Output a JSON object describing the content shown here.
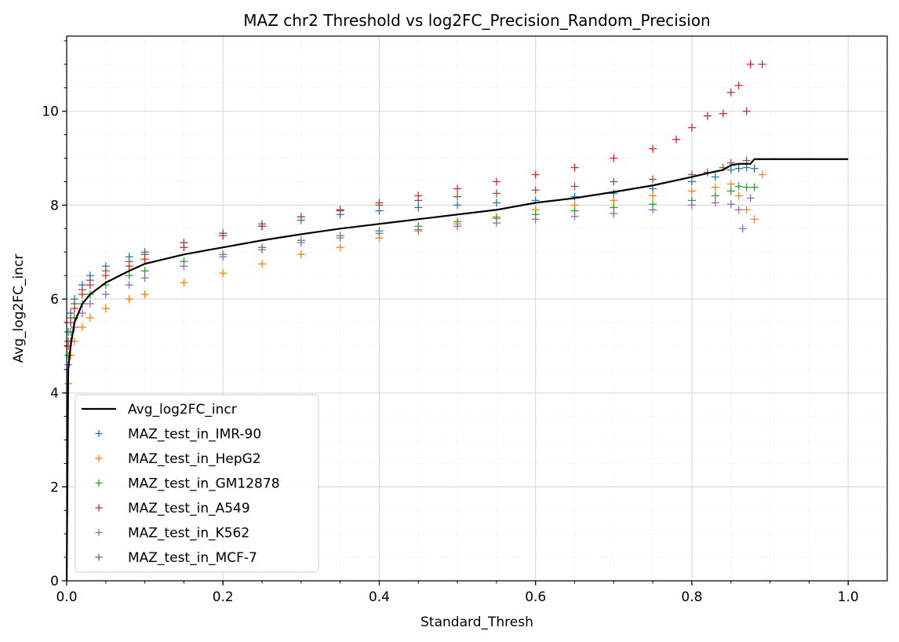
{
  "chart_data": {
    "type": "scatter",
    "title": "MAZ chr2 Threshold vs log2FC_Precision_Random_Precision",
    "xlabel": "Standard_Thresh",
    "ylabel": "Avg_log2FC_incr",
    "xlim": [
      0.0,
      1.05
    ],
    "ylim": [
      0,
      11.6
    ],
    "xticks": [
      "0.0",
      "0.2",
      "0.4",
      "0.6",
      "0.8",
      "1.0"
    ],
    "yticks": [
      "0",
      "2",
      "4",
      "6",
      "8",
      "10"
    ],
    "grid": true,
    "minor_grid": true,
    "legend_position": "lower-left",
    "line_series": {
      "name": "Avg_log2FC_incr",
      "color": "#000000",
      "x": [
        0.0,
        0.002,
        0.005,
        0.01,
        0.02,
        0.03,
        0.05,
        0.08,
        0.1,
        0.15,
        0.2,
        0.25,
        0.3,
        0.35,
        0.4,
        0.45,
        0.5,
        0.55,
        0.6,
        0.65,
        0.7,
        0.75,
        0.8,
        0.82,
        0.84,
        0.85,
        0.86,
        0.87,
        0.875,
        0.88,
        0.9,
        0.95,
        1.0
      ],
      "y": [
        0.0,
        4.5,
        5.0,
        5.5,
        5.9,
        6.1,
        6.35,
        6.6,
        6.75,
        6.95,
        7.1,
        7.25,
        7.38,
        7.5,
        7.6,
        7.7,
        7.8,
        7.9,
        8.05,
        8.15,
        8.28,
        8.42,
        8.6,
        8.68,
        8.75,
        8.85,
        8.88,
        8.88,
        8.88,
        8.98,
        8.98,
        8.98,
        8.98
      ]
    },
    "series": [
      {
        "name": "MAZ_test_in_IMR-90",
        "color": "#1f77b4",
        "x": [
          0.002,
          0.005,
          0.01,
          0.02,
          0.03,
          0.05,
          0.08,
          0.1,
          0.15,
          0.2,
          0.25,
          0.3,
          0.35,
          0.4,
          0.45,
          0.5,
          0.55,
          0.6,
          0.65,
          0.7,
          0.75,
          0.8,
          0.83,
          0.85,
          0.86,
          0.87,
          0.88
        ],
        "y": [
          5.3,
          5.7,
          6.0,
          6.3,
          6.5,
          6.7,
          6.9,
          7.0,
          7.2,
          7.4,
          7.55,
          7.68,
          7.8,
          7.88,
          7.95,
          8.0,
          8.05,
          8.1,
          8.18,
          8.25,
          8.35,
          8.5,
          8.6,
          8.75,
          8.78,
          8.8,
          8.78
        ]
      },
      {
        "name": "MAZ_test_in_HepG2",
        "color": "#ff7f0e",
        "x": [
          0.002,
          0.005,
          0.01,
          0.02,
          0.03,
          0.05,
          0.08,
          0.1,
          0.15,
          0.2,
          0.25,
          0.3,
          0.35,
          0.4,
          0.45,
          0.5,
          0.55,
          0.6,
          0.65,
          0.7,
          0.75,
          0.8,
          0.83,
          0.85,
          0.86,
          0.87,
          0.88,
          0.89
        ],
        "y": [
          4.2,
          4.8,
          5.1,
          5.4,
          5.6,
          5.8,
          6.0,
          6.1,
          6.35,
          6.55,
          6.75,
          6.95,
          7.1,
          7.3,
          7.45,
          7.6,
          7.75,
          7.9,
          8.0,
          8.1,
          8.2,
          8.3,
          8.38,
          8.45,
          8.2,
          7.9,
          7.7,
          8.65
        ]
      },
      {
        "name": "MAZ_test_in_GM12878",
        "color": "#2ca02c",
        "x": [
          0.002,
          0.005,
          0.01,
          0.02,
          0.03,
          0.05,
          0.08,
          0.1,
          0.15,
          0.2,
          0.25,
          0.3,
          0.35,
          0.4,
          0.45,
          0.5,
          0.55,
          0.6,
          0.65,
          0.7,
          0.75,
          0.8,
          0.83,
          0.85,
          0.86,
          0.87,
          0.88
        ],
        "y": [
          4.8,
          5.3,
          5.6,
          5.9,
          6.1,
          6.3,
          6.5,
          6.6,
          6.8,
          6.95,
          7.1,
          7.25,
          7.35,
          7.45,
          7.55,
          7.65,
          7.72,
          7.8,
          7.88,
          7.95,
          8.02,
          8.1,
          8.2,
          8.3,
          8.4,
          8.38,
          8.38
        ]
      },
      {
        "name": "MAZ_test_in_A549",
        "color": "#d62728",
        "x": [
          0.002,
          0.005,
          0.01,
          0.02,
          0.03,
          0.05,
          0.08,
          0.1,
          0.15,
          0.2,
          0.25,
          0.3,
          0.35,
          0.4,
          0.45,
          0.5,
          0.55,
          0.6,
          0.65,
          0.7,
          0.75,
          0.78,
          0.8,
          0.82,
          0.84,
          0.85,
          0.86,
          0.87,
          0.875,
          0.89
        ],
        "y": [
          5.0,
          5.5,
          5.8,
          6.1,
          6.3,
          6.5,
          6.7,
          6.85,
          7.1,
          7.35,
          7.55,
          7.75,
          7.9,
          8.05,
          8.2,
          8.35,
          8.5,
          8.65,
          8.8,
          9.0,
          9.2,
          9.4,
          9.65,
          9.9,
          9.95,
          10.4,
          10.55,
          10.0,
          11.0,
          11.0
        ]
      },
      {
        "name": "MAZ_test_in_K562",
        "color": "#9467bd",
        "x": [
          0.002,
          0.005,
          0.01,
          0.02,
          0.03,
          0.05,
          0.08,
          0.1,
          0.15,
          0.2,
          0.25,
          0.3,
          0.35,
          0.4,
          0.45,
          0.5,
          0.55,
          0.6,
          0.65,
          0.7,
          0.75,
          0.8,
          0.83,
          0.85,
          0.86,
          0.865,
          0.875
        ],
        "y": [
          4.6,
          5.1,
          5.4,
          5.7,
          5.9,
          6.1,
          6.3,
          6.45,
          6.7,
          6.9,
          7.05,
          7.2,
          7.3,
          7.4,
          7.48,
          7.55,
          7.62,
          7.7,
          7.76,
          7.82,
          7.9,
          8.0,
          8.05,
          8.02,
          7.9,
          7.5,
          8.15
        ]
      },
      {
        "name": "MAZ_test_in_MCF-7",
        "color": "#8c564b",
        "x": [
          0.002,
          0.005,
          0.01,
          0.02,
          0.03,
          0.05,
          0.08,
          0.1,
          0.15,
          0.2,
          0.25,
          0.3,
          0.35,
          0.4,
          0.45,
          0.5,
          0.55,
          0.6,
          0.65,
          0.7,
          0.75,
          0.8,
          0.82,
          0.84,
          0.85,
          0.87
        ],
        "y": [
          5.1,
          5.6,
          5.9,
          6.2,
          6.4,
          6.6,
          6.8,
          6.95,
          7.2,
          7.4,
          7.6,
          7.75,
          7.88,
          8.0,
          8.1,
          8.18,
          8.25,
          8.32,
          8.4,
          8.5,
          8.55,
          8.65,
          8.7,
          8.8,
          8.9,
          8.95
        ]
      }
    ]
  }
}
